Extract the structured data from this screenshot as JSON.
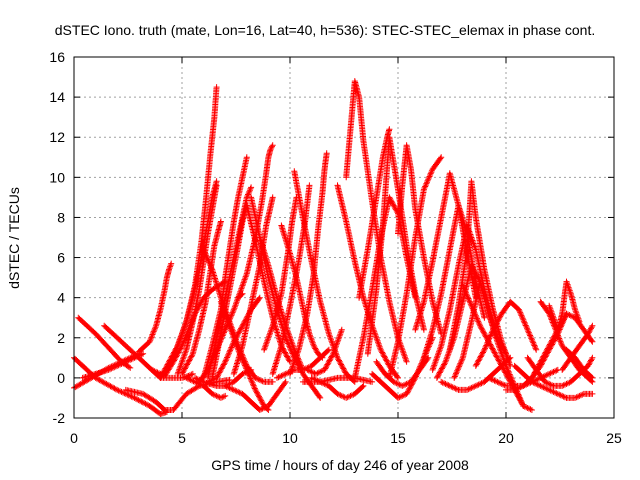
{
  "chart_data": {
    "type": "scatter",
    "title": "dSTEC Iono. truth (mate, Lon=16, Lat=40, h=536): STEC-STEC_elemax in phase cont.",
    "xlabel": "GPS time / hours of day 246 of year 2008",
    "ylabel": "dSTEC  / TECUs",
    "xlim": [
      0,
      25
    ],
    "ylim": [
      -2,
      16
    ],
    "x_ticks": [
      0,
      5,
      10,
      15,
      20,
      25
    ],
    "y_ticks": [
      -2,
      0,
      2,
      4,
      6,
      8,
      10,
      12,
      14,
      16
    ],
    "x_tick_labels": [
      "0",
      "5",
      "10",
      "15",
      "20",
      "25"
    ],
    "y_tick_labels": [
      "-2",
      "0",
      "2",
      "4",
      "6",
      "8",
      "10",
      "12",
      "14",
      "16"
    ],
    "grid": true,
    "legend": "none",
    "marker": "+",
    "color": "#ff0000",
    "series": [
      {
        "x": [
          0.0,
          1.0,
          2.0,
          2.8,
          3.5,
          4.0,
          4.3
        ],
        "y": [
          1.0,
          0.0,
          -0.6,
          -1.0,
          -1.4,
          -1.8,
          -1.7
        ]
      },
      {
        "x": [
          0.0,
          0.8,
          1.6,
          2.4,
          3.0
        ],
        "y": [
          -0.5,
          0.0,
          0.5,
          0.9,
          1.2
        ]
      },
      {
        "x": [
          0.2,
          1.0,
          1.6,
          2.2,
          2.6
        ],
        "y": [
          3.0,
          2.2,
          1.5,
          0.8,
          0.5
        ]
      },
      {
        "x": [
          0.4,
          1.0,
          1.6,
          2.2,
          2.8,
          3.2
        ],
        "y": [
          0.0,
          0.2,
          0.4,
          0.7,
          1.0,
          1.2
        ]
      },
      {
        "x": [
          1.4,
          2.2,
          3.0,
          3.6,
          4.0
        ],
        "y": [
          2.6,
          1.8,
          1.0,
          0.4,
          0.2
        ]
      },
      {
        "x": [
          2.4,
          3.2,
          3.8,
          4.2,
          4.6,
          5.2,
          5.8,
          6.6,
          7.2
        ],
        "y": [
          -0.6,
          -0.8,
          -1.2,
          -1.6,
          -1.6,
          -0.8,
          -0.4,
          -0.2,
          -0.1
        ]
      },
      {
        "x": [
          3.0,
          3.5,
          3.8,
          4.0,
          4.2,
          4.3,
          4.4,
          4.5
        ],
        "y": [
          1.3,
          1.8,
          2.6,
          3.4,
          4.4,
          5.0,
          5.4,
          5.7
        ]
      },
      {
        "x": [
          3.6,
          4.0,
          4.5,
          5.0,
          5.3,
          5.5
        ],
        "y": [
          0.4,
          0.0,
          0.0,
          0.0,
          0.1,
          0.2
        ]
      },
      {
        "x": [
          4.2,
          4.6,
          5.0,
          5.3,
          5.6,
          6.0,
          6.4,
          7.0
        ],
        "y": [
          0.1,
          0.8,
          1.6,
          2.4,
          3.2,
          4.0,
          4.4,
          4.8
        ]
      },
      {
        "x": [
          4.0,
          4.4,
          4.8,
          5.2,
          5.5,
          5.8,
          6.0,
          6.2,
          6.4,
          6.6
        ],
        "y": [
          0.0,
          0.8,
          1.6,
          2.8,
          4.0,
          5.4,
          6.6,
          7.8,
          9.0,
          9.8
        ]
      },
      {
        "x": [
          4.8,
          5.2,
          5.5,
          5.8,
          6.0,
          6.2,
          6.4,
          6.6
        ],
        "y": [
          0.2,
          1.4,
          2.8,
          4.4,
          5.8,
          7.2,
          8.4,
          9.6
        ]
      },
      {
        "x": [
          5.0,
          5.5,
          5.8,
          6.1,
          6.3,
          6.5,
          6.7,
          6.8
        ],
        "y": [
          0.2,
          1.2,
          2.4,
          3.8,
          5.2,
          6.6,
          7.4,
          7.8
        ]
      },
      {
        "x": [
          5.2,
          5.6,
          6.0,
          6.4,
          6.8,
          7.0
        ],
        "y": [
          0.0,
          -0.2,
          -0.4,
          -0.8,
          -1.0,
          -0.9
        ]
      },
      {
        "x": [
          5.6,
          6.0,
          6.6,
          7.0,
          7.4,
          7.8,
          8.2
        ],
        "y": [
          0.0,
          -0.2,
          -0.4,
          -0.4,
          -0.2,
          0.2,
          0.4
        ]
      },
      {
        "x": [
          5.8,
          6.2,
          6.6,
          7.0,
          7.4,
          7.6,
          7.8
        ],
        "y": [
          -0.2,
          0.4,
          1.4,
          2.4,
          3.4,
          4.0,
          4.2
        ]
      },
      {
        "x": [
          6.2,
          6.6,
          7.0,
          7.4,
          7.8,
          8.2,
          8.6
        ],
        "y": [
          -0.2,
          0.0,
          0.8,
          1.8,
          2.6,
          3.4,
          4.0
        ]
      },
      {
        "x": [
          6.0,
          6.4,
          6.8,
          7.0,
          7.2,
          7.4,
          7.6,
          7.8,
          8.0
        ],
        "y": [
          0.0,
          1.6,
          3.4,
          5.0,
          6.4,
          7.8,
          9.0,
          10.0,
          11.0
        ]
      },
      {
        "x": [
          6.2,
          6.6,
          7.0,
          7.4,
          7.6,
          7.8,
          8.0,
          8.2
        ],
        "y": [
          0.0,
          2.0,
          4.0,
          6.0,
          7.0,
          8.0,
          9.0,
          9.5
        ]
      },
      {
        "x": [
          6.4,
          6.8,
          7.2,
          7.6,
          7.8,
          8.0
        ],
        "y": [
          0.0,
          2.2,
          4.4,
          6.6,
          7.8,
          8.6
        ]
      },
      {
        "x": [
          4.0,
          4.6,
          5.2,
          5.6,
          5.9,
          6.1,
          6.3,
          6.5,
          6.6
        ],
        "y": [
          0.0,
          1.0,
          2.8,
          4.6,
          6.8,
          8.8,
          11.0,
          13.0,
          14.5
        ]
      },
      {
        "x": [
          6.0,
          6.4,
          6.8,
          7.2,
          7.6,
          8.0,
          8.4,
          8.8,
          9.2
        ],
        "y": [
          6.4,
          5.4,
          4.0,
          2.8,
          1.6,
          0.6,
          0.0,
          -0.2,
          -0.2
        ]
      },
      {
        "x": [
          6.8,
          7.2,
          7.6,
          8.0,
          8.4,
          8.8,
          9.0
        ],
        "y": [
          3.8,
          2.6,
          1.4,
          0.4,
          -0.6,
          -1.4,
          -1.6
        ]
      },
      {
        "x": [
          7.0,
          7.4,
          7.8,
          8.2,
          8.6,
          9.0,
          9.4,
          9.8
        ],
        "y": [
          -0.4,
          -0.6,
          -0.8,
          -1.2,
          -1.6,
          -1.4,
          -0.8,
          -0.2
        ]
      },
      {
        "x": [
          8.0,
          8.4,
          8.8,
          9.2,
          9.6,
          10.0
        ],
        "y": [
          8.6,
          6.8,
          4.8,
          3.0,
          1.6,
          0.8
        ]
      },
      {
        "x": [
          8.2,
          8.6,
          9.0,
          9.4,
          9.8,
          10.2,
          10.6,
          11.0,
          11.4
        ],
        "y": [
          9.0,
          7.0,
          5.0,
          3.4,
          2.0,
          1.0,
          0.2,
          -0.4,
          -1.0
        ]
      },
      {
        "x": [
          8.6,
          9.0,
          9.4,
          9.8,
          10.2,
          10.6
        ],
        "y": [
          7.0,
          5.6,
          4.0,
          2.6,
          1.4,
          0.4
        ]
      },
      {
        "x": [
          7.6,
          8.0,
          8.4,
          8.7,
          8.9,
          9.0,
          9.1,
          9.2
        ],
        "y": [
          4.0,
          5.2,
          7.0,
          8.8,
          10.2,
          11.0,
          11.4,
          11.6
        ]
      },
      {
        "x": [
          7.4,
          7.8,
          8.2,
          8.6,
          8.9,
          9.2
        ],
        "y": [
          0.2,
          1.6,
          3.6,
          5.6,
          7.6,
          9.0
        ]
      },
      {
        "x": [
          8.8,
          9.2,
          9.6,
          9.9,
          10.1,
          10.3
        ],
        "y": [
          1.4,
          2.6,
          4.2,
          6.2,
          7.8,
          9.0
        ]
      },
      {
        "x": [
          9.2,
          9.6,
          10.0,
          10.4,
          10.7,
          10.9
        ],
        "y": [
          0.2,
          1.6,
          3.6,
          5.8,
          7.8,
          9.6
        ]
      },
      {
        "x": [
          9.4,
          9.8,
          10.2,
          10.6,
          11.0,
          11.4,
          11.8
        ],
        "y": [
          0.0,
          0.2,
          0.4,
          0.4,
          0.6,
          1.0,
          1.4
        ]
      },
      {
        "x": [
          9.6,
          10.0,
          10.3,
          10.5,
          10.7,
          10.9,
          11.1,
          11.3,
          11.5
        ],
        "y": [
          7.6,
          6.2,
          5.0,
          4.0,
          3.0,
          2.2,
          1.6,
          1.2,
          1.0
        ]
      },
      {
        "x": [
          10.0,
          10.4,
          10.8,
          11.1,
          11.3,
          11.5,
          11.6,
          11.7
        ],
        "y": [
          0.2,
          1.4,
          3.2,
          5.2,
          7.4,
          9.2,
          10.4,
          11.2
        ]
      },
      {
        "x": [
          10.2,
          10.6,
          11.0,
          11.4,
          11.8,
          12.2,
          12.6,
          13.0
        ],
        "y": [
          10.3,
          8.0,
          5.8,
          3.8,
          2.2,
          1.0,
          0.2,
          -0.2
        ]
      },
      {
        "x": [
          10.8,
          11.2,
          11.6,
          12.0,
          12.4
        ],
        "y": [
          0.4,
          0.2,
          0.4,
          1.2,
          2.4
        ]
      },
      {
        "x": [
          10.6,
          11.0,
          11.4,
          11.8,
          12.2,
          12.6,
          13.0,
          13.4,
          13.8
        ],
        "y": [
          -0.2,
          -0.2,
          -0.2,
          -0.1,
          0.0,
          0.0,
          0.0,
          -0.1,
          -0.2
        ]
      },
      {
        "x": [
          11.0,
          11.4,
          11.8,
          12.2,
          12.6,
          13.0,
          13.4
        ],
        "y": [
          0.0,
          -0.2,
          -0.4,
          -0.8,
          -1.0,
          -0.8,
          -0.4
        ]
      },
      {
        "x": [
          12.2,
          12.6,
          13.0,
          13.4,
          13.8,
          14.2,
          14.6,
          15.0
        ],
        "y": [
          9.6,
          7.8,
          5.8,
          4.0,
          2.6,
          1.4,
          0.6,
          0.0
        ]
      },
      {
        "x": [
          12.6,
          12.8,
          13.0,
          13.2,
          13.4,
          13.8,
          14.2,
          14.6,
          15.0,
          15.4
        ],
        "y": [
          10.0,
          12.4,
          14.8,
          14.0,
          11.8,
          8.8,
          6.0,
          3.8,
          2.0,
          0.8
        ]
      },
      {
        "x": [
          13.2,
          13.6,
          14.0,
          14.3,
          14.5,
          14.6
        ],
        "y": [
          4.0,
          6.4,
          9.0,
          11.0,
          12.0,
          12.4
        ]
      },
      {
        "x": [
          13.0,
          13.4,
          13.8,
          14.2,
          14.6,
          15.0,
          15.4,
          15.8
        ],
        "y": [
          0.0,
          2.0,
          4.4,
          7.0,
          9.0,
          8.2,
          6.0,
          4.0
        ]
      },
      {
        "x": [
          13.6,
          14.0,
          14.3,
          14.6,
          15.0,
          15.4,
          15.8,
          16.2
        ],
        "y": [
          1.2,
          4.4,
          7.6,
          12.0,
          9.4,
          6.6,
          4.2,
          2.4
        ]
      },
      {
        "x": [
          13.8,
          14.2,
          14.6,
          15.0,
          15.4,
          15.8,
          16.2,
          16.6
        ],
        "y": [
          0.2,
          -0.2,
          -0.6,
          -1.0,
          -0.8,
          0.0,
          1.0,
          2.0
        ]
      },
      {
        "x": [
          14.0,
          14.4,
          14.8,
          15.2,
          15.6,
          16.0,
          16.4
        ],
        "y": [
          0.8,
          0.2,
          -0.2,
          -0.4,
          -0.2,
          0.4,
          1.0
        ]
      },
      {
        "x": [
          14.6,
          15.0,
          15.4,
          15.8,
          16.2,
          16.6,
          17.0
        ],
        "y": [
          0.0,
          1.8,
          4.2,
          7.0,
          9.4,
          10.4,
          11.0
        ]
      },
      {
        "x": [
          15.0,
          15.2,
          15.4,
          15.6,
          15.8,
          16.2,
          16.6,
          17.0
        ],
        "y": [
          7.2,
          9.6,
          11.6,
          10.4,
          8.4,
          6.0,
          3.8,
          2.2
        ]
      },
      {
        "x": [
          15.8,
          16.2,
          16.6,
          17.0,
          17.4,
          17.8,
          18.2,
          18.6
        ],
        "y": [
          2.4,
          3.8,
          5.8,
          8.0,
          10.2,
          8.6,
          6.2,
          4.0
        ]
      },
      {
        "x": [
          16.2,
          16.6,
          17.0,
          17.4,
          17.8,
          18.2,
          18.6,
          19.0
        ],
        "y": [
          1.0,
          2.4,
          4.2,
          6.4,
          8.6,
          7.2,
          4.8,
          3.0
        ]
      },
      {
        "x": [
          16.6,
          17.0,
          17.4,
          17.8,
          18.2,
          18.6,
          19.0,
          19.4
        ],
        "y": [
          0.4,
          1.6,
          3.4,
          5.6,
          7.6,
          6.4,
          4.4,
          2.8
        ]
      },
      {
        "x": [
          16.8,
          17.2,
          17.6,
          18.0,
          18.4,
          18.8,
          19.2,
          19.6,
          20.0
        ],
        "y": [
          0.0,
          0.8,
          2.0,
          3.8,
          5.6,
          4.8,
          3.2,
          2.0,
          1.2
        ]
      },
      {
        "x": [
          17.0,
          17.4,
          17.8,
          18.2,
          18.6,
          19.0,
          19.4,
          19.8,
          20.2
        ],
        "y": [
          -0.2,
          -0.4,
          -0.6,
          -0.6,
          -0.4,
          -0.2,
          0.2,
          0.6,
          1.0
        ]
      },
      {
        "x": [
          17.4,
          17.8,
          18.2,
          18.4,
          18.6,
          19.0,
          19.4,
          19.8,
          20.2
        ],
        "y": [
          1.4,
          3.6,
          6.4,
          9.8,
          8.0,
          5.4,
          3.4,
          1.8,
          0.6
        ]
      },
      {
        "x": [
          17.6,
          18.0,
          18.4,
          18.8,
          19.2,
          19.6,
          20.0,
          20.4,
          20.8
        ],
        "y": [
          0.0,
          1.0,
          2.8,
          4.8,
          3.2,
          1.8,
          0.6,
          -0.4,
          -1.4
        ]
      },
      {
        "x": [
          18.0,
          18.4,
          18.8,
          19.2,
          19.6,
          20.0,
          20.4,
          20.8,
          21.2
        ],
        "y": [
          4.6,
          3.6,
          2.6,
          1.8,
          1.0,
          0.2,
          -0.6,
          -1.4,
          -1.6
        ]
      },
      {
        "x": [
          18.6,
          19.0,
          19.4,
          19.8,
          20.2,
          20.6,
          21.0,
          21.4
        ],
        "y": [
          0.6,
          1.4,
          2.4,
          3.2,
          3.8,
          3.4,
          2.4,
          1.4
        ]
      },
      {
        "x": [
          19.2,
          19.6,
          20.0,
          20.4,
          20.8,
          21.2,
          21.6,
          22.0,
          22.4
        ],
        "y": [
          0.0,
          -0.2,
          -0.4,
          -0.4,
          -0.4,
          -0.2,
          0.0,
          0.2,
          0.4
        ]
      },
      {
        "x": [
          20.0,
          20.4,
          20.8,
          21.2,
          21.6,
          22.0,
          22.4,
          22.8
        ],
        "y": [
          -0.6,
          -0.6,
          -0.4,
          0.0,
          0.6,
          1.4,
          2.2,
          3.2
        ]
      },
      {
        "x": [
          20.4,
          20.8,
          21.2,
          21.6,
          22.0,
          22.4,
          22.8,
          23.2,
          23.6,
          24.0
        ],
        "y": [
          0.6,
          0.2,
          -0.2,
          -0.4,
          -0.6,
          -0.8,
          -1.0,
          -1.0,
          -0.8,
          -0.8
        ]
      },
      {
        "x": [
          21.0,
          21.4,
          21.8,
          22.2,
          22.6,
          23.0,
          23.4,
          23.8,
          24.0
        ],
        "y": [
          1.0,
          0.4,
          -0.2,
          -0.4,
          -0.4,
          -0.2,
          0.2,
          0.6,
          1.0
        ]
      },
      {
        "x": [
          21.2,
          21.6,
          22.0,
          22.4,
          22.8,
          23.2,
          23.6,
          24.0
        ],
        "y": [
          0.0,
          0.8,
          1.6,
          2.4,
          3.2,
          3.0,
          2.4,
          1.8
        ]
      },
      {
        "x": [
          21.6,
          22.0,
          22.3,
          22.6,
          23.0,
          23.4,
          23.8,
          24.0
        ],
        "y": [
          3.8,
          3.2,
          2.4,
          1.6,
          1.0,
          0.4,
          0.0,
          -0.2
        ]
      },
      {
        "x": [
          22.0,
          22.4,
          22.6,
          22.8,
          23.0,
          23.2,
          23.4
        ],
        "y": [
          3.6,
          2.4,
          3.2,
          4.8,
          4.2,
          3.4,
          2.8
        ]
      },
      {
        "x": [
          22.6,
          23.0,
          23.4,
          23.8,
          24.0
        ],
        "y": [
          0.4,
          1.0,
          1.6,
          2.2,
          2.6
        ]
      },
      {
        "x": [
          22.8,
          23.2,
          23.6,
          24.0
        ],
        "y": [
          1.4,
          1.0,
          0.4,
          0.0
        ]
      }
    ]
  }
}
